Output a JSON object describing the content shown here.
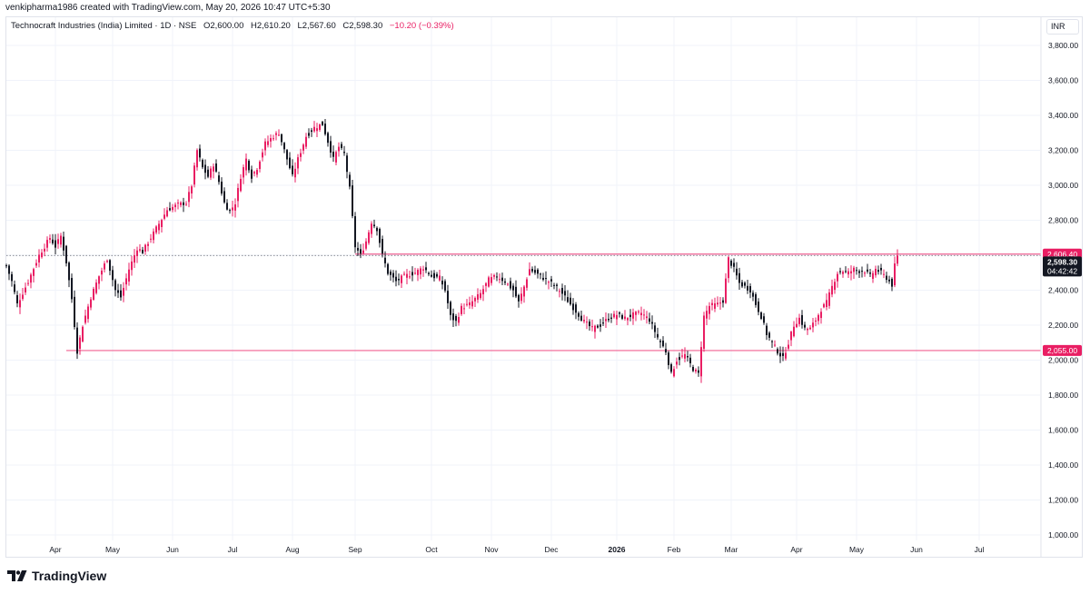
{
  "header": {
    "attribution": "venkipharma1986 created with TradingView.com, May 20, 2026 10:47 UTC+5:30"
  },
  "legend": {
    "symbol": "Technocraft Industries (India) Limited · 1D · NSE",
    "open": "O2,600.00",
    "high": "H2,610.20",
    "low": "L2,567.60",
    "close": "C2,598.30",
    "change": "−10.20 (−0.39%)"
  },
  "currency_label": "INR",
  "footer": {
    "brand": "TradingView"
  },
  "colors": {
    "up": "#e91e63",
    "down": "#131722",
    "level": "#f06292",
    "level_label_bg": "#e91e63",
    "grid": "#f0f3fa"
  },
  "chart_data": {
    "type": "candlestick",
    "y_axis": {
      "min": 1000,
      "max": 3800,
      "ticks": [
        "1,000.00",
        "1,200.00",
        "1,400.00",
        "1,600.00",
        "1,800.00",
        "2,000.00",
        "2,200.00",
        "2,400.00",
        "2,600.00",
        "2,800.00",
        "3,000.00",
        "3,200.00",
        "3,400.00",
        "3,600.00",
        "3,800.00"
      ]
    },
    "x_axis": {
      "ticks": [
        "Apr",
        "May",
        "Jun",
        "Jul",
        "Aug",
        "Sep",
        "Oct",
        "Nov",
        "Dec",
        "2026",
        "Feb",
        "Mar",
        "Apr",
        "May",
        "Jun",
        "Jul"
      ]
    },
    "grid": true,
    "horizontal_levels": [
      {
        "value": 2606.4,
        "label": "2,606.40"
      },
      {
        "value": 2055.0,
        "label": "2,055.00"
      }
    ],
    "last_price": {
      "value": 2598.3,
      "label": "2,598.30",
      "countdown": "04:42:42"
    },
    "anchors": [
      [
        0,
        2540
      ],
      [
        2,
        2450
      ],
      [
        4,
        2320
      ],
      [
        8,
        2450
      ],
      [
        12,
        2600
      ],
      [
        16,
        2700
      ],
      [
        18,
        2650
      ],
      [
        20,
        2710
      ],
      [
        22,
        2560
      ],
      [
        24,
        2350
      ],
      [
        26,
        2050
      ],
      [
        28,
        2200
      ],
      [
        31,
        2360
      ],
      [
        34,
        2480
      ],
      [
        37,
        2580
      ],
      [
        40,
        2400
      ],
      [
        42,
        2360
      ],
      [
        45,
        2520
      ],
      [
        48,
        2640
      ],
      [
        50,
        2620
      ],
      [
        53,
        2700
      ],
      [
        56,
        2780
      ],
      [
        59,
        2860
      ],
      [
        63,
        2890
      ],
      [
        66,
        2900
      ],
      [
        68,
        3000
      ],
      [
        70,
        3200
      ],
      [
        72,
        3100
      ],
      [
        74,
        3050
      ],
      [
        76,
        3120
      ],
      [
        78,
        3020
      ],
      [
        80,
        2900
      ],
      [
        82,
        2850
      ],
      [
        84,
        2900
      ],
      [
        86,
        3050
      ],
      [
        88,
        3150
      ],
      [
        90,
        3050
      ],
      [
        92,
        3100
      ],
      [
        95,
        3240
      ],
      [
        98,
        3280
      ],
      [
        100,
        3300
      ],
      [
        103,
        3150
      ],
      [
        105,
        3050
      ],
      [
        107,
        3150
      ],
      [
        110,
        3280
      ],
      [
        113,
        3330
      ],
      [
        116,
        3350
      ],
      [
        118,
        3250
      ],
      [
        120,
        3150
      ],
      [
        122,
        3220
      ],
      [
        124,
        3180
      ],
      [
        126,
        2980
      ],
      [
        128,
        2650
      ],
      [
        130,
        2600
      ],
      [
        132,
        2680
      ],
      [
        134,
        2790
      ],
      [
        136,
        2750
      ],
      [
        138,
        2600
      ],
      [
        140,
        2500
      ],
      [
        143,
        2450
      ],
      [
        146,
        2480
      ],
      [
        150,
        2500
      ],
      [
        153,
        2530
      ],
      [
        156,
        2480
      ],
      [
        159,
        2470
      ],
      [
        161,
        2400
      ],
      [
        163,
        2250
      ],
      [
        165,
        2220
      ],
      [
        167,
        2300
      ],
      [
        170,
        2320
      ],
      [
        174,
        2380
      ],
      [
        177,
        2460
      ],
      [
        180,
        2480
      ],
      [
        183,
        2450
      ],
      [
        186,
        2400
      ],
      [
        188,
        2330
      ],
      [
        190,
        2420
      ],
      [
        192,
        2520
      ],
      [
        194,
        2500
      ],
      [
        197,
        2470
      ],
      [
        200,
        2440
      ],
      [
        203,
        2400
      ],
      [
        206,
        2340
      ],
      [
        209,
        2280
      ],
      [
        212,
        2220
      ],
      [
        215,
        2180
      ],
      [
        218,
        2200
      ],
      [
        221,
        2240
      ],
      [
        224,
        2260
      ],
      [
        227,
        2240
      ],
      [
        230,
        2260
      ],
      [
        233,
        2270
      ],
      [
        236,
        2230
      ],
      [
        239,
        2130
      ],
      [
        242,
        2050
      ],
      [
        244,
        1920
      ],
      [
        246,
        2000
      ],
      [
        249,
        2030
      ],
      [
        252,
        1950
      ],
      [
        254,
        1920
      ],
      [
        256,
        2250
      ],
      [
        258,
        2310
      ],
      [
        261,
        2320
      ],
      [
        263,
        2340
      ],
      [
        265,
        2580
      ],
      [
        267,
        2520
      ],
      [
        269,
        2440
      ],
      [
        271,
        2420
      ],
      [
        273,
        2400
      ],
      [
        275,
        2320
      ],
      [
        277,
        2250
      ],
      [
        279,
        2150
      ],
      [
        281,
        2100
      ],
      [
        283,
        2050
      ],
      [
        285,
        2010
      ],
      [
        287,
        2100
      ],
      [
        289,
        2200
      ],
      [
        291,
        2240
      ],
      [
        293,
        2180
      ],
      [
        295,
        2180
      ],
      [
        297,
        2230
      ],
      [
        299,
        2290
      ],
      [
        301,
        2330
      ],
      [
        303,
        2420
      ],
      [
        305,
        2500
      ],
      [
        307,
        2510
      ],
      [
        309,
        2500
      ],
      [
        311,
        2520
      ],
      [
        313,
        2510
      ],
      [
        315,
        2510
      ],
      [
        317,
        2480
      ],
      [
        319,
        2520
      ],
      [
        321,
        2500
      ],
      [
        323,
        2470
      ],
      [
        325,
        2430
      ],
      [
        326,
        2540
      ],
      [
        327,
        2598
      ]
    ]
  }
}
